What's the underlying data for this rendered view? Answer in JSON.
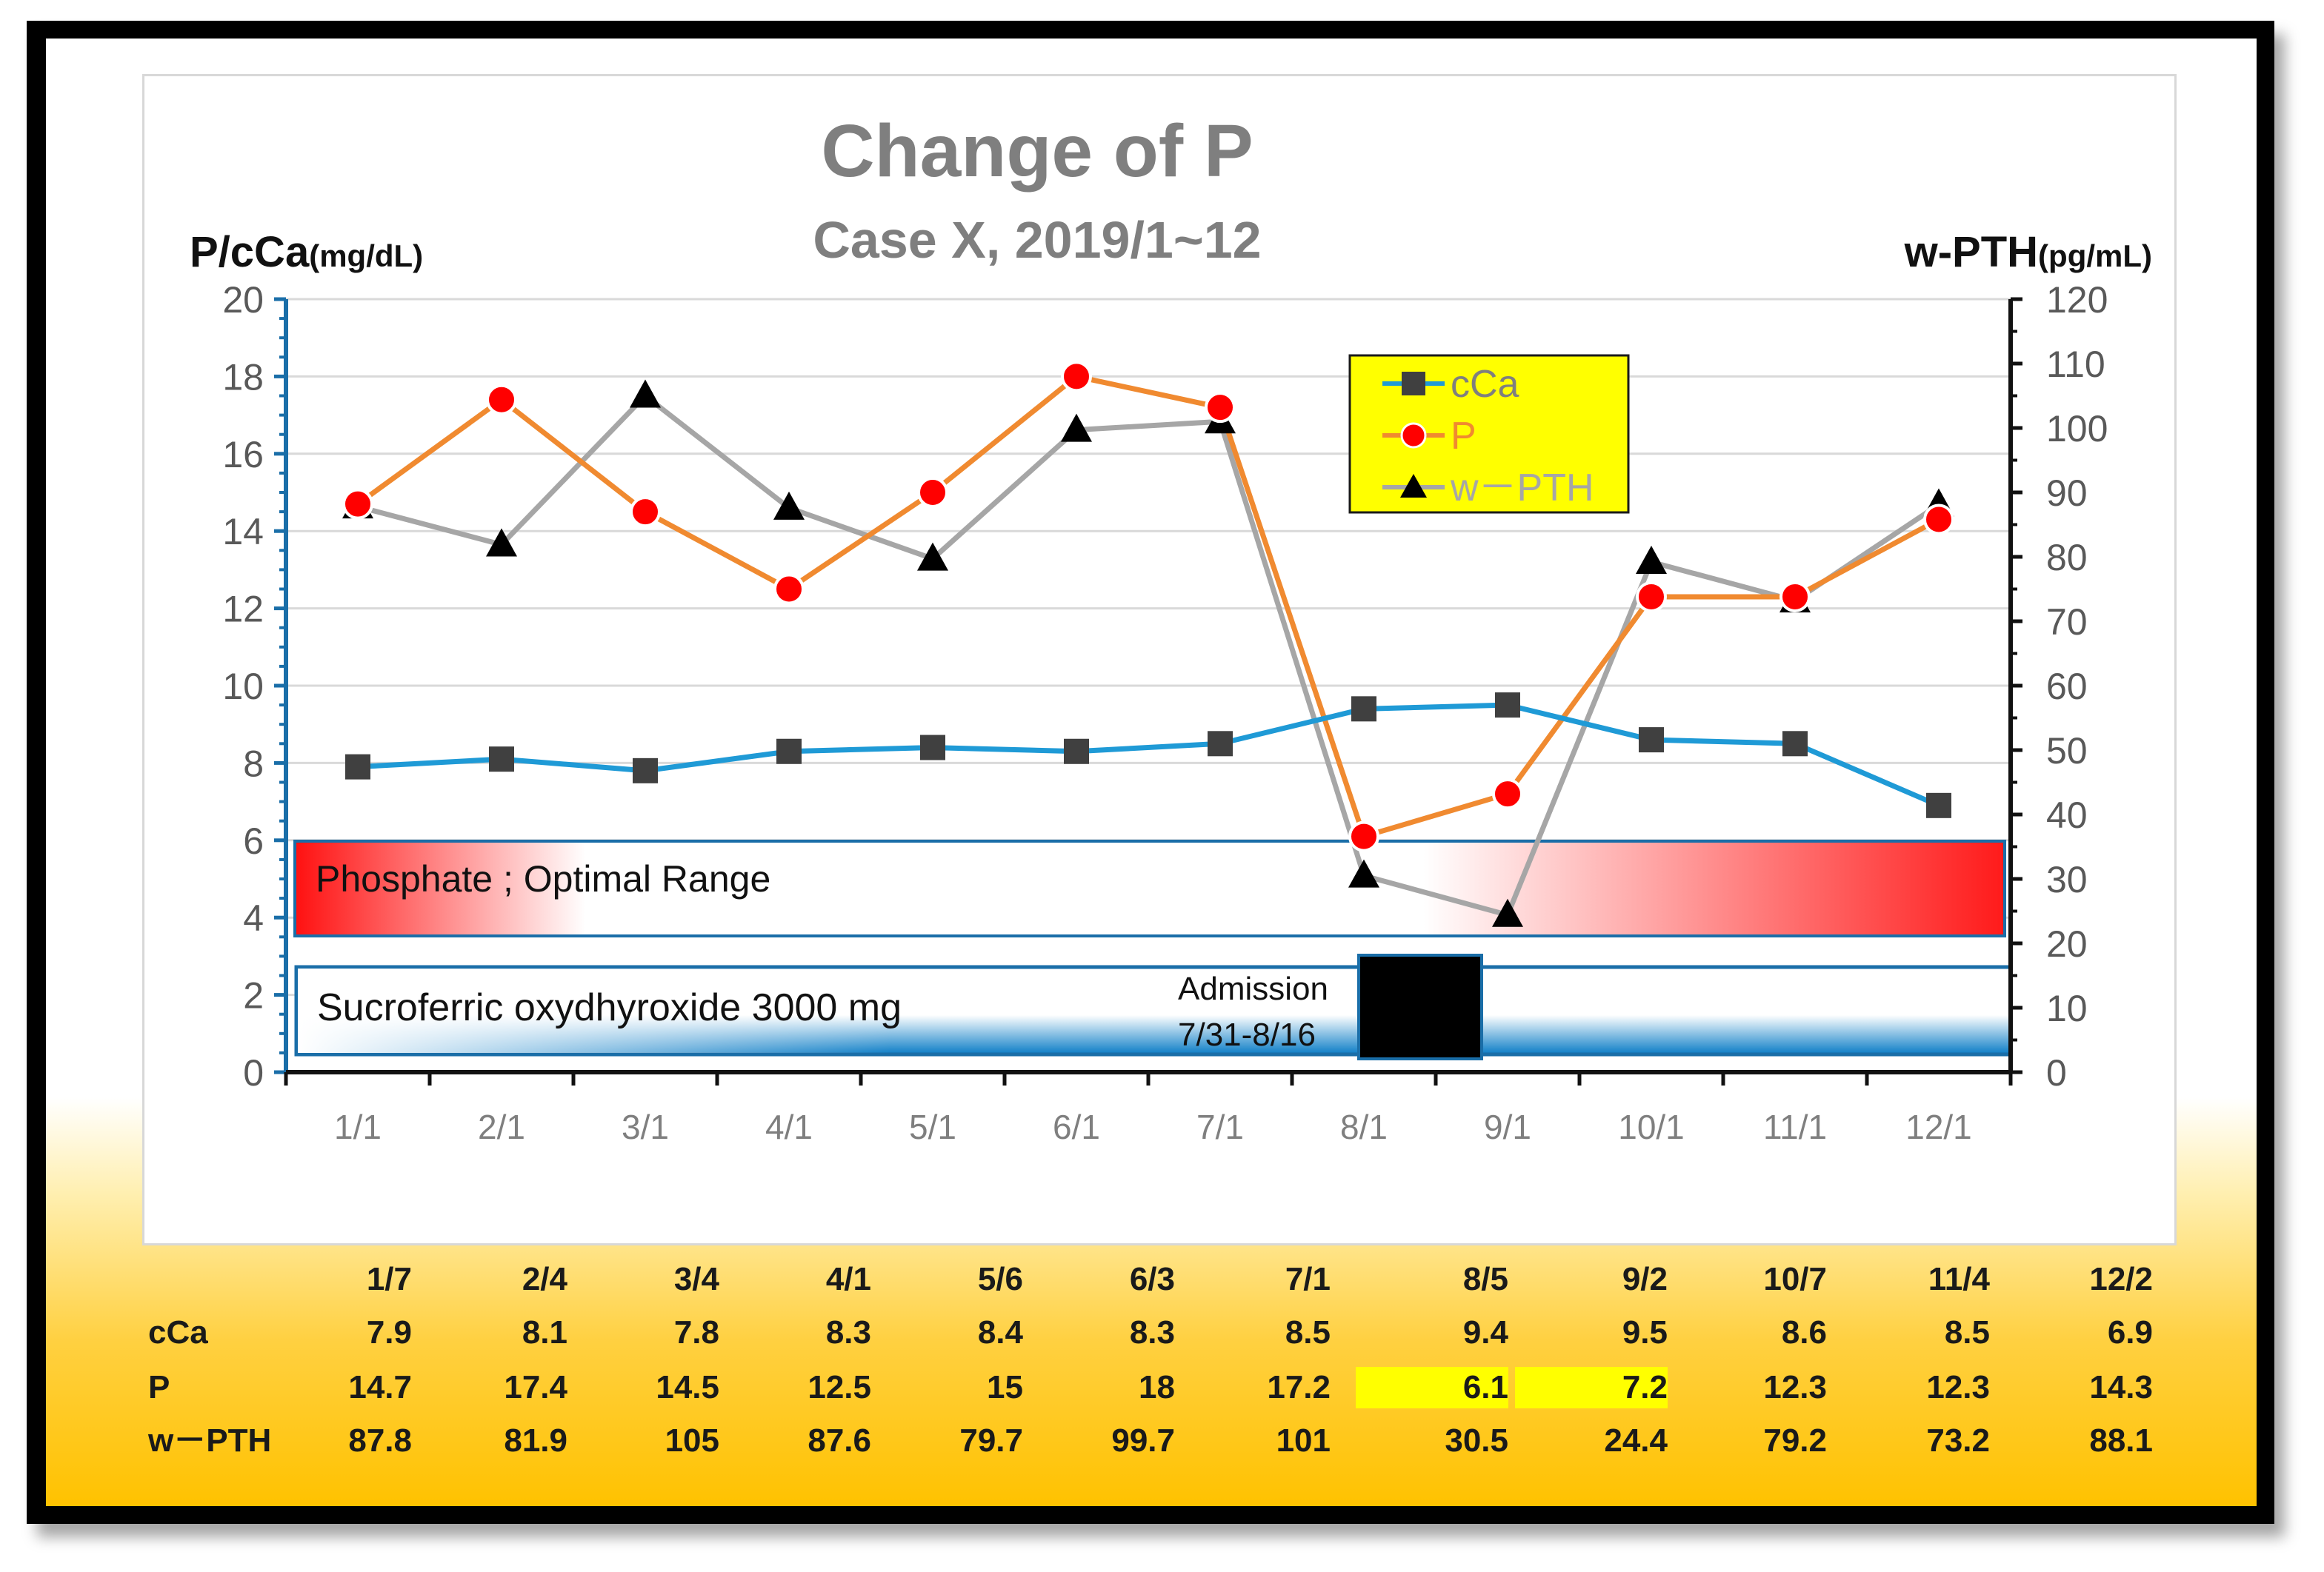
{
  "chart_data": {
    "type": "line",
    "title": "Change of  P",
    "subtitle": "Case X, 2019/1~12",
    "y_left_label": "P/cCa",
    "y_left_unit": "(mg/dL)",
    "y_right_label": "w-PTH",
    "y_right_unit": "(pg/mL)",
    "ylim_left": [
      0,
      20
    ],
    "ylim_right": [
      0,
      120
    ],
    "y_left_ticks": [
      "0",
      "2",
      "4",
      "6",
      "8",
      "10",
      "12",
      "14",
      "16",
      "18",
      "20"
    ],
    "y_right_ticks": [
      "0",
      "10",
      "20",
      "30",
      "40",
      "50",
      "60",
      "70",
      "80",
      "90",
      "100",
      "110",
      "120"
    ],
    "categories": [
      "1/1",
      "2/1",
      "3/1",
      "4/1",
      "5/1",
      "6/1",
      "7/1",
      "8/1",
      "9/1",
      "10/1",
      "11/1",
      "12/1"
    ],
    "series": [
      {
        "name": "cCa",
        "axis": "left",
        "color": "#1f9ad6",
        "marker": "square",
        "values": [
          7.9,
          8.1,
          7.8,
          8.3,
          8.4,
          8.3,
          8.5,
          9.4,
          9.5,
          8.6,
          8.5,
          6.9
        ]
      },
      {
        "name": "P",
        "axis": "left",
        "color": "#f08a30",
        "marker": "circle",
        "values": [
          14.7,
          17.4,
          14.5,
          12.5,
          15,
          18,
          17.2,
          6.1,
          7.2,
          12.3,
          12.3,
          14.3
        ]
      },
      {
        "name": "w－PTH",
        "axis": "right",
        "color": "#a6a6a6",
        "marker": "triangle",
        "values": [
          87.8,
          81.9,
          105,
          87.6,
          79.7,
          99.7,
          101,
          30.5,
          24.4,
          79.2,
          73.2,
          88.1
        ]
      }
    ],
    "legend": [
      "cCa",
      "P",
      "w－PTH"
    ],
    "legend_position": "top-right",
    "annotations": {
      "optimal_range": "Phosphate ; Optimal Range",
      "drug": "Sucroferric oxydhyroxide 3000 mg",
      "admission_title": "Admission",
      "admission_dates": "7/31-8/16"
    }
  },
  "table": {
    "dates": [
      "1/7",
      "2/4",
      "3/4",
      "4/1",
      "5/6",
      "6/3",
      "7/1",
      "8/5",
      "9/2",
      "10/7",
      "11/4",
      "12/2"
    ],
    "rows": [
      {
        "label": "cCa",
        "values": [
          "7.9",
          "8.1",
          "7.8",
          "8.3",
          "8.4",
          "8.3",
          "8.5",
          "9.4",
          "9.5",
          "8.6",
          "8.5",
          "6.9"
        ]
      },
      {
        "label": "P",
        "values": [
          "14.7",
          "17.4",
          "14.5",
          "12.5",
          "15",
          "18",
          "17.2",
          "6.1",
          "7.2",
          "12.3",
          "12.3",
          "14.3"
        ],
        "highlight": [
          7,
          8
        ]
      },
      {
        "label": "w－PTH",
        "values": [
          "87.8",
          "81.9",
          "105",
          "87.6",
          "79.7",
          "99.7",
          "101",
          "30.5",
          "24.4",
          "79.2",
          "73.2",
          "88.1"
        ]
      }
    ]
  }
}
